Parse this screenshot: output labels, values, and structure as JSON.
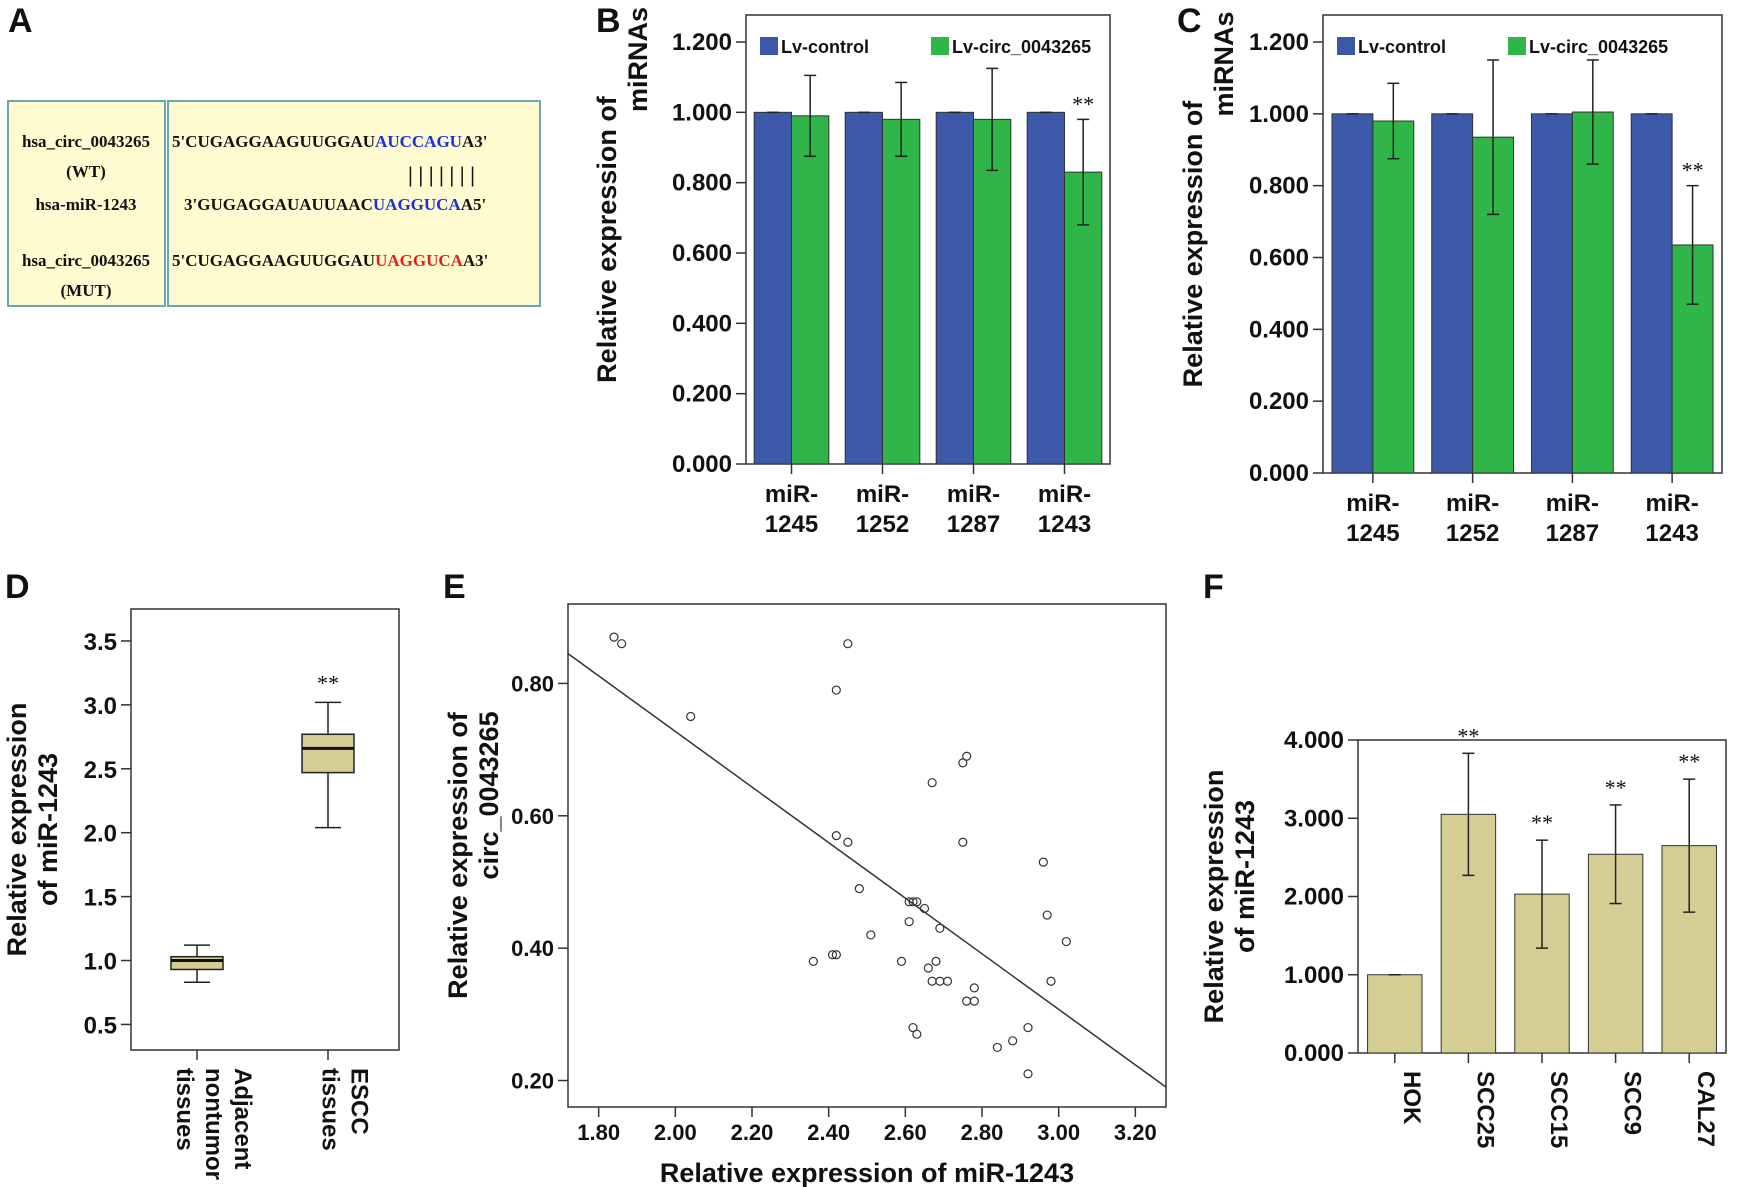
{
  "colors": {
    "control": "#3c58a8",
    "circ": "#2fb548",
    "beige": "#d4cd94",
    "box_bg": "#fffbd0",
    "box_border": "#6aa7b0",
    "blue_text": "#1a2fe0",
    "red_text": "#e32020"
  },
  "panel_a": {
    "letter": "A",
    "rows": [
      {
        "label": "hsa_circ_0043265",
        "label2": "(WT)",
        "seq_prefix": "5'CUGAGGAAGUUGGAU",
        "seq_highlight": "AUCCAGU",
        "seq_suffix": "A3'"
      },
      {
        "pairs": "| | | | | | |"
      },
      {
        "label": "hsa-miR-1243",
        "seq_prefix": "3'GUGAGGAUAUUAAC",
        "seq_highlight": "UAGGUCA",
        "seq_suffix": "A5'"
      },
      {
        "label": "hsa_circ_0043265",
        "label2": "(MUT)",
        "seq_prefix": "5'CUGAGGAAGUUGGAU",
        "seq_highlight": "UAGGUCA",
        "seq_suffix": "A3'"
      }
    ]
  },
  "chart_data": [
    {
      "panel": "B",
      "type": "bar",
      "ylabel_lines": [
        "Relative expression of",
        "miRNAs"
      ],
      "categories": [
        [
          "miR-",
          "1245"
        ],
        [
          "miR-",
          "1252"
        ],
        [
          "miR-",
          "1287"
        ],
        [
          "miR-",
          "1243"
        ]
      ],
      "ylim": [
        0,
        1.2
      ],
      "yticks": [
        "0.000",
        "0.200",
        "0.400",
        "0.600",
        "0.800",
        "1.000",
        "1.200"
      ],
      "legend": [
        "Lv-control",
        "Lv-circ_0043265"
      ],
      "series": [
        {
          "name": "Lv-control",
          "values": [
            1.0,
            1.0,
            1.0,
            1.0
          ],
          "err": [
            0,
            0,
            0,
            0
          ]
        },
        {
          "name": "Lv-circ_0043265",
          "values": [
            0.99,
            0.98,
            0.98,
            0.83
          ],
          "err": [
            0.115,
            0.105,
            0.145,
            0.15
          ]
        }
      ],
      "annotations": [
        "",
        "",
        "",
        "**"
      ]
    },
    {
      "panel": "C",
      "type": "bar",
      "ylabel_lines": [
        "Relative expression of",
        "miRNAs"
      ],
      "categories": [
        [
          "miR-",
          "1245"
        ],
        [
          "miR-",
          "1252"
        ],
        [
          "miR-",
          "1287"
        ],
        [
          "miR-",
          "1243"
        ]
      ],
      "ylim": [
        0,
        1.2
      ],
      "yticks": [
        "0.000",
        "0.200",
        "0.400",
        "0.600",
        "0.800",
        "1.000",
        "1.200"
      ],
      "legend": [
        "Lv-control",
        "Lv-circ_0043265"
      ],
      "series": [
        {
          "name": "Lv-control",
          "values": [
            1.0,
            1.0,
            1.0,
            1.0
          ],
          "err": [
            0,
            0,
            0,
            0
          ]
        },
        {
          "name": "Lv-circ_0043265",
          "values": [
            0.98,
            0.935,
            1.005,
            0.635
          ],
          "err": [
            0.105,
            0.215,
            0.145,
            0.165
          ]
        }
      ],
      "annotations": [
        "",
        "",
        "",
        "**"
      ]
    },
    {
      "panel": "D",
      "type": "box",
      "ylabel_lines": [
        "Relative expression",
        "of miR-1243"
      ],
      "categories": [
        [
          "Adjacent",
          "nontumor",
          "tissues"
        ],
        [
          "ESCC",
          "tissues"
        ]
      ],
      "ylim": [
        0.3,
        3.75
      ],
      "yticks": [
        "0.5",
        "1.0",
        "1.5",
        "2.0",
        "2.5",
        "3.0",
        "3.5"
      ],
      "boxes": [
        {
          "whisker_low": 0.83,
          "q1": 0.93,
          "median": 1.0,
          "q3": 1.03,
          "whisker_high": 1.12
        },
        {
          "whisker_low": 2.04,
          "q1": 2.47,
          "median": 2.66,
          "q3": 2.77,
          "whisker_high": 3.02
        }
      ],
      "annotations": [
        "",
        "**"
      ]
    },
    {
      "panel": "E",
      "type": "scatter",
      "xlabel": "Relative expression of miR-1243",
      "ylabel_lines": [
        "Relative expression of",
        "circ_0043265"
      ],
      "xlim": [
        1.72,
        3.28
      ],
      "ylim": [
        0.16,
        0.92
      ],
      "xticks": [
        "1.80",
        "2.00",
        "2.20",
        "2.40",
        "2.60",
        "2.80",
        "3.00",
        "3.20"
      ],
      "yticks": [
        "0.20",
        "0.40",
        "0.60",
        "0.80"
      ],
      "x": [
        1.84,
        1.86,
        2.04,
        2.45,
        2.42,
        2.42,
        2.45,
        2.48,
        2.36,
        2.41,
        2.42,
        2.51,
        2.59,
        2.61,
        2.62,
        2.63,
        2.65,
        2.61,
        2.67,
        2.69,
        2.66,
        2.68,
        2.69,
        2.71,
        2.67,
        2.75,
        2.76,
        2.75,
        2.78,
        2.78,
        2.76,
        2.62,
        2.63,
        2.84,
        2.88,
        2.92,
        2.92,
        2.96,
        2.97,
        2.98,
        3.02
      ],
      "y": [
        0.87,
        0.86,
        0.75,
        0.86,
        0.79,
        0.57,
        0.56,
        0.49,
        0.38,
        0.39,
        0.39,
        0.42,
        0.38,
        0.44,
        0.47,
        0.47,
        0.46,
        0.47,
        0.65,
        0.43,
        0.37,
        0.38,
        0.35,
        0.35,
        0.35,
        0.68,
        0.69,
        0.56,
        0.34,
        0.32,
        0.32,
        0.28,
        0.27,
        0.25,
        0.26,
        0.21,
        0.28,
        0.53,
        0.45,
        0.35,
        0.41
      ],
      "fit_line": {
        "x": [
          1.72,
          3.28
        ],
        "y": [
          0.845,
          0.19
        ]
      }
    },
    {
      "panel": "F",
      "type": "bar",
      "ylabel_lines": [
        "Relative expression",
        "of miR-1243"
      ],
      "categories": [
        "HOK",
        "SCC25",
        "SCC15",
        "SCC9",
        "CAL27"
      ],
      "ylim": [
        0,
        4.0
      ],
      "yticks": [
        "0.000",
        "1.000",
        "2.000",
        "3.000",
        "4.000"
      ],
      "values": [
        1.0,
        3.05,
        2.03,
        2.54,
        2.65
      ],
      "err": [
        0,
        0.78,
        0.69,
        0.63,
        0.85
      ],
      "annotations": [
        "",
        "**",
        "**",
        "**",
        "**"
      ]
    }
  ]
}
